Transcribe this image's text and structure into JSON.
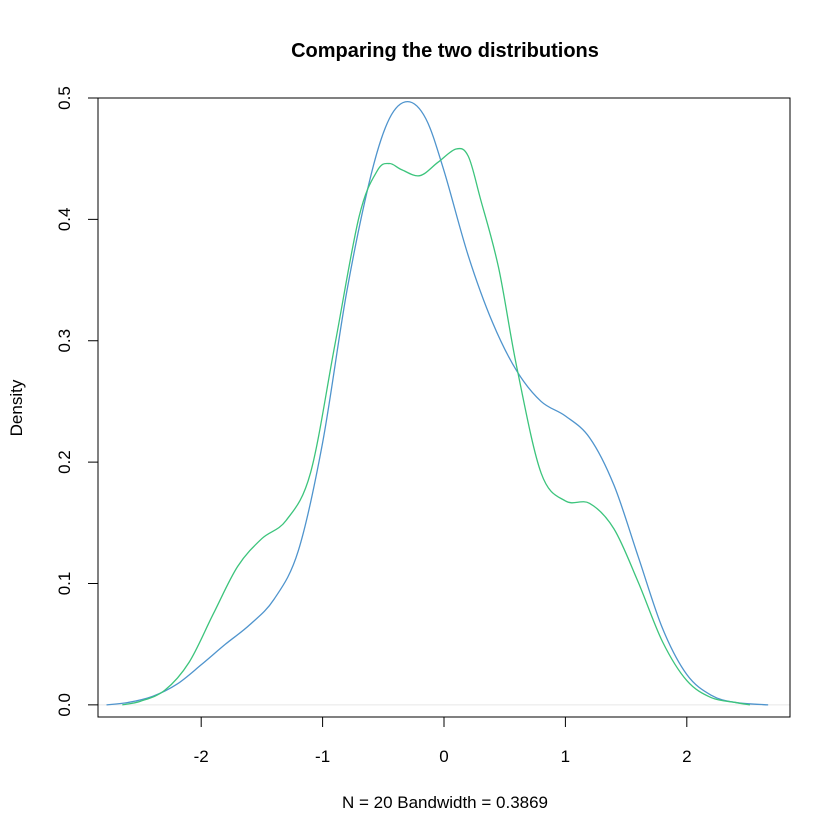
{
  "chart_data": {
    "type": "line",
    "title": "Comparing the two distributions",
    "xlabel": "N = 20   Bandwidth = 0.3869",
    "ylabel": "Density",
    "xlim": [
      -2.85,
      2.85
    ],
    "ylim": [
      -0.01,
      0.5
    ],
    "x_ticks": [
      -2,
      -1,
      0,
      1,
      2
    ],
    "x_tick_labels": [
      "-2",
      "-1",
      "0",
      "1",
      "2"
    ],
    "y_ticks": [
      0.0,
      0.1,
      0.2,
      0.3,
      0.4,
      0.5
    ],
    "y_tick_labels": [
      "0.0",
      "0.1",
      "0.2",
      "0.3",
      "0.4",
      "0.5"
    ],
    "grid": false,
    "legend": "none",
    "baseline": 0,
    "series": [
      {
        "color": "#4f94cd",
        "x": [
          -2.78,
          -2.6,
          -2.4,
          -2.2,
          -2.0,
          -1.8,
          -1.6,
          -1.4,
          -1.2,
          -1.0,
          -0.8,
          -0.6,
          -0.45,
          -0.3,
          -0.15,
          0.0,
          0.2,
          0.4,
          0.6,
          0.8,
          1.0,
          1.2,
          1.4,
          1.6,
          1.8,
          2.0,
          2.2,
          2.4,
          2.67
        ],
        "y": [
          0.0,
          0.002,
          0.007,
          0.017,
          0.033,
          0.05,
          0.066,
          0.087,
          0.127,
          0.216,
          0.341,
          0.437,
          0.483,
          0.497,
          0.483,
          0.44,
          0.37,
          0.315,
          0.275,
          0.25,
          0.238,
          0.22,
          0.181,
          0.122,
          0.063,
          0.025,
          0.008,
          0.002,
          0.0
        ]
      },
      {
        "color": "#3cc47c",
        "x": [
          -2.65,
          -2.5,
          -2.3,
          -2.1,
          -1.9,
          -1.7,
          -1.5,
          -1.3,
          -1.1,
          -0.9,
          -0.7,
          -0.55,
          -0.45,
          -0.35,
          -0.2,
          -0.05,
          0.1,
          0.2,
          0.3,
          0.45,
          0.6,
          0.8,
          1.0,
          1.2,
          1.4,
          1.6,
          1.8,
          2.0,
          2.2,
          2.4,
          2.52
        ],
        "y": [
          0.0,
          0.003,
          0.012,
          0.035,
          0.075,
          0.114,
          0.137,
          0.152,
          0.191,
          0.296,
          0.402,
          0.44,
          0.446,
          0.441,
          0.436,
          0.447,
          0.458,
          0.452,
          0.417,
          0.36,
          0.278,
          0.191,
          0.168,
          0.166,
          0.145,
          0.101,
          0.052,
          0.02,
          0.006,
          0.002,
          0.0
        ]
      }
    ]
  }
}
